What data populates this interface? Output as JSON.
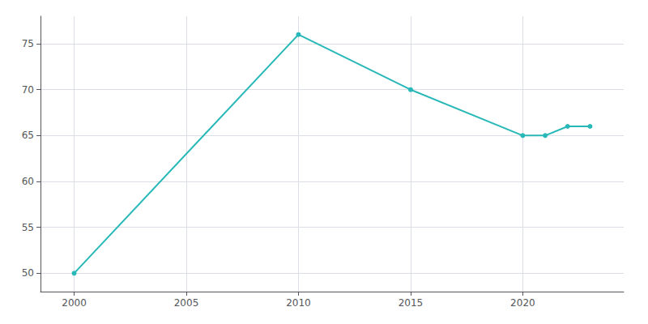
{
  "chart_data": {
    "type": "line",
    "x": [
      2000,
      2010,
      2015,
      2020,
      2021,
      2022,
      2023
    ],
    "values": [
      50,
      76,
      70,
      65,
      65,
      66,
      66
    ],
    "color": "#28b8b8",
    "marker": "circle",
    "xlim": [
      1998.5,
      2024.5
    ],
    "xticks": [
      2000,
      2005,
      2010,
      2015,
      2020
    ],
    "ylim": [
      48,
      78
    ],
    "yticks": [
      50,
      55,
      60,
      65,
      70,
      75
    ],
    "grid": true
  }
}
